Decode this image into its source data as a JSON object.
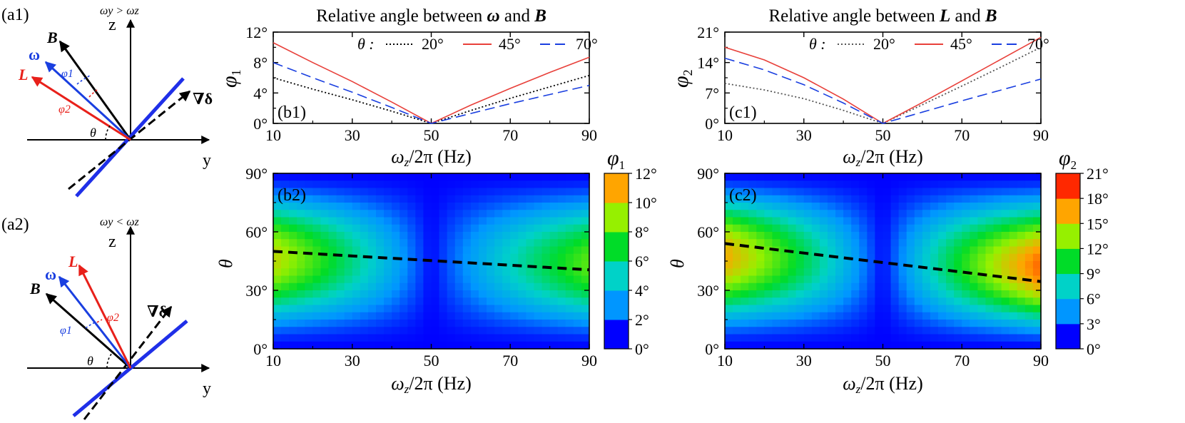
{
  "colors": {
    "red": "#e8403a",
    "blue": "#1a3fe0",
    "black": "#000000",
    "diag_blue": "#1f2fe8",
    "B_vec": "#000000",
    "omega_vec": "#1a3fe0",
    "L_vec": "#e8201a"
  },
  "schematic": {
    "a1": {
      "tag": "(a1)",
      "condition": "ωy > ωz",
      "z_label": "z",
      "y_label": "y",
      "B": "B",
      "omega": "ω",
      "L": "L",
      "grad": "∇δ",
      "phi1": "φ1",
      "phi2": "φ2",
      "theta": "θ"
    },
    "a2": {
      "tag": "(a2)",
      "condition": "ωy < ωz",
      "z_label": "z",
      "y_label": "y",
      "B": "B",
      "omega": "ω",
      "L": "L",
      "grad": "∇δ",
      "phi1": "φ1",
      "phi2": "φ2",
      "theta": "θ"
    }
  },
  "chart_data": [
    {
      "id": "b1",
      "type": "line",
      "tag": "(b1)",
      "title_prefix": "Relative angle between ",
      "title_sym1": "ω",
      "title_mid": " and ",
      "title_sym2": "B",
      "xlabel": "ωz/2π (Hz)",
      "ylabel": "φ1",
      "xlim": [
        10,
        90
      ],
      "ylim": [
        0,
        12
      ],
      "xticks": [
        10,
        30,
        50,
        70,
        90
      ],
      "yticks": [
        0,
        4,
        8,
        12
      ],
      "ytick_labels": [
        "0°",
        "4°",
        "8°",
        "12°"
      ],
      "legend_title": "θ :",
      "x": [
        10,
        20,
        30,
        40,
        50,
        60,
        70,
        80,
        90
      ],
      "series": [
        {
          "name": "20°",
          "style": "dotted",
          "color": "#000000",
          "values": [
            6.0,
            4.5,
            3.1,
            1.6,
            0.0,
            1.7,
            3.3,
            4.8,
            6.3
          ]
        },
        {
          "name": "45°",
          "style": "solid",
          "color": "#e8403a",
          "values": [
            10.6,
            8.0,
            5.5,
            2.8,
            0.0,
            2.4,
            4.6,
            6.7,
            8.7
          ]
        },
        {
          "name": "70°",
          "style": "dashed",
          "color": "#1a3fe0",
          "values": [
            8.0,
            6.0,
            4.1,
            2.1,
            0.0,
            1.3,
            2.6,
            3.8,
            5.0
          ]
        }
      ]
    },
    {
      "id": "c1",
      "type": "line",
      "tag": "(c1)",
      "title_prefix": "Relative angle between ",
      "title_sym1": "L",
      "title_mid": " and ",
      "title_sym2": "B",
      "xlabel": "ωz/2π (Hz)",
      "ylabel": "φ2",
      "xlim": [
        10,
        90
      ],
      "ylim": [
        0,
        21
      ],
      "xticks": [
        10,
        30,
        50,
        70,
        90
      ],
      "yticks": [
        0,
        7,
        14,
        21
      ],
      "ytick_labels": [
        "0°",
        "7°",
        "14°",
        "21°"
      ],
      "legend_title": "θ :",
      "x": [
        10,
        20,
        30,
        40,
        50,
        60,
        70,
        80,
        90
      ],
      "series": [
        {
          "name": "20°",
          "style": "dotted",
          "color": "#555555",
          "values": [
            9.2,
            7.7,
            5.7,
            3.0,
            0.0,
            4.3,
            8.6,
            13.0,
            17.5
          ]
        },
        {
          "name": "45°",
          "style": "solid",
          "color": "#e8403a",
          "values": [
            17.5,
            14.6,
            10.5,
            5.6,
            0.0,
            4.8,
            9.8,
            14.8,
            19.8
          ]
        },
        {
          "name": "70°",
          "style": "dashed",
          "color": "#1a3fe0",
          "values": [
            15.0,
            12.3,
            8.9,
            4.7,
            0.0,
            2.6,
            5.2,
            7.7,
            10.2
          ]
        }
      ]
    },
    {
      "id": "b2",
      "type": "heatmap",
      "tag": "(b2)",
      "xlabel": "ωz/2π (Hz)",
      "ylabel": "θ",
      "xlim": [
        10,
        90
      ],
      "ylim": [
        0,
        90
      ],
      "xticks": [
        10,
        30,
        50,
        70,
        90
      ],
      "yticks": [
        0,
        30,
        60,
        90
      ],
      "ytick_labels": [
        "0°",
        "30°",
        "60°",
        "90°"
      ],
      "zmax": 12,
      "colorbar_label": "φ1",
      "colorbar_ticks": [
        "0°",
        "2°",
        "4°",
        "6°",
        "8°",
        "10°",
        "12°"
      ],
      "colorbar_colors": [
        "#0000ff",
        "#0096ff",
        "#00d2c8",
        "#00dc28",
        "#96f000",
        "#ffa500"
      ],
      "max_line": {
        "x": [
          10,
          90
        ],
        "y": [
          50,
          40.5
        ]
      }
    },
    {
      "id": "c2",
      "type": "heatmap",
      "tag": "(c2)",
      "xlabel": "ωz/2π (Hz)",
      "ylabel": "θ",
      "xlim": [
        10,
        90
      ],
      "ylim": [
        0,
        90
      ],
      "xticks": [
        10,
        30,
        50,
        70,
        90
      ],
      "yticks": [
        0,
        30,
        60,
        90
      ],
      "ytick_labels": [
        "0°",
        "30°",
        "60°",
        "90°"
      ],
      "zmax": 21,
      "colorbar_label": "φ2",
      "colorbar_ticks": [
        "0°",
        "3°",
        "6°",
        "9°",
        "12°",
        "15°",
        "18°",
        "21°"
      ],
      "colorbar_colors": [
        "#0000ff",
        "#0096ff",
        "#00d2c8",
        "#00dc28",
        "#96f000",
        "#ffa500",
        "#ff2800"
      ],
      "max_line": {
        "x": [
          10,
          90
        ],
        "y": [
          54,
          34.5
        ]
      }
    }
  ]
}
